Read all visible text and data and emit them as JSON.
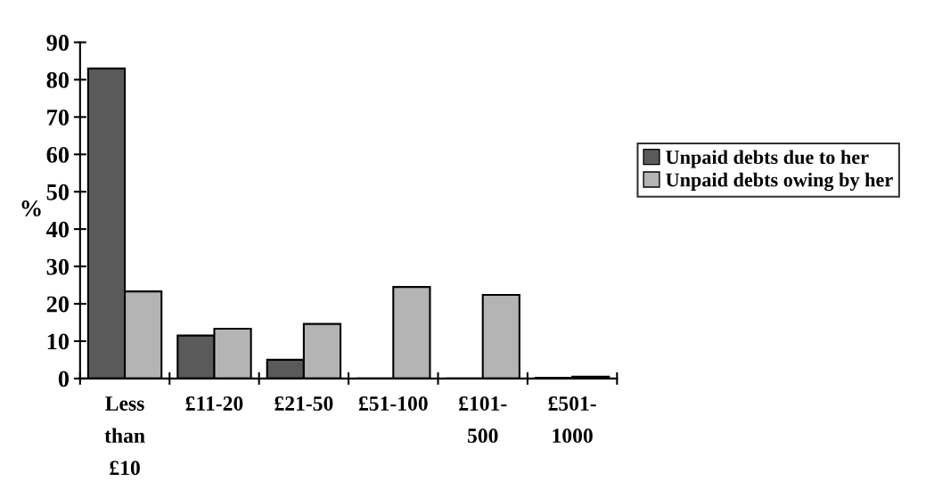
{
  "chart_data": {
    "type": "bar",
    "ylabel": "%",
    "categories": [
      "Less\nthan\n£10",
      "£11-20",
      "£21-50",
      "£51-100",
      "£101-\n500",
      "£501-\n1000"
    ],
    "series": [
      {
        "name": "Unpaid debts due to her",
        "color": "#5a5a5a",
        "values": [
          83,
          11.5,
          5,
          0,
          0,
          0.2
        ]
      },
      {
        "name": "Unpaid debts owing by her",
        "color": "#b4b4b4",
        "values": [
          23.3,
          13.3,
          14.6,
          24.5,
          22.4,
          0.5
        ]
      }
    ],
    "ylim": [
      0,
      90
    ],
    "yticks": [
      0,
      10,
      20,
      30,
      40,
      50,
      60,
      70,
      80,
      90
    ],
    "grid": false,
    "legend": "right"
  }
}
